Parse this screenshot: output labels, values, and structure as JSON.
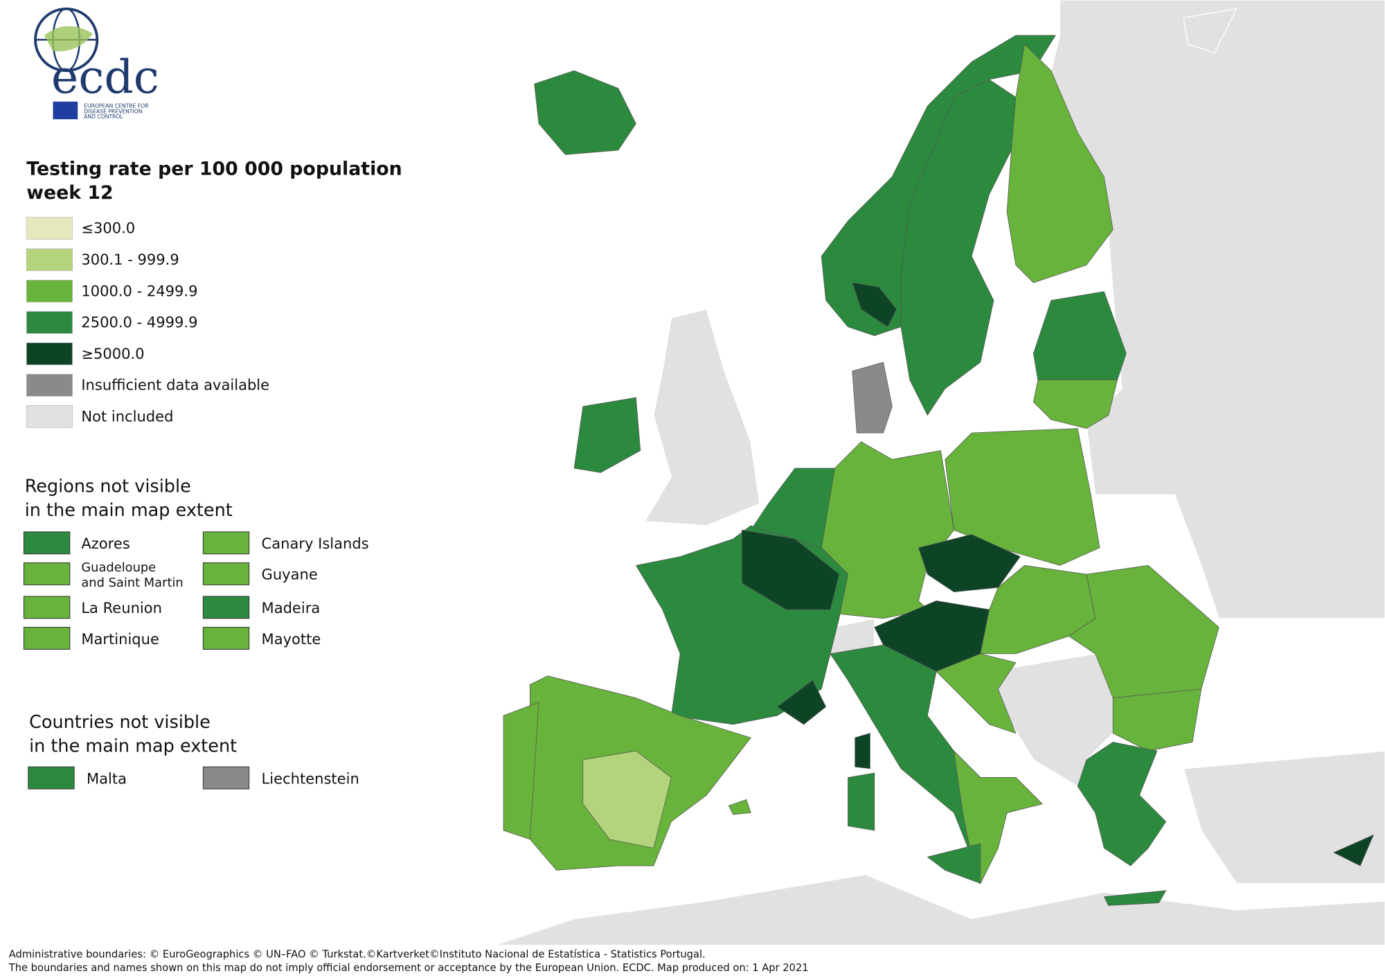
{
  "logo": {
    "name": "ecdc",
    "subtitle": [
      "EUROPEAN CENTRE FOR",
      "DISEASE PREVENTION",
      "AND CONTROL"
    ]
  },
  "legend": {
    "title": [
      "Testing rate per 100 000 population",
      "week 12"
    ],
    "items": [
      {
        "label": "≤300.0",
        "color": "#e6e8bb"
      },
      {
        "label": "300.1 - 999.9",
        "color": "#b3d47a"
      },
      {
        "label": "1000.0 - 2499.9",
        "color": "#68b33b"
      },
      {
        "label": "2500.0 - 4999.9",
        "color": "#2c8a3f"
      },
      {
        "label": "≥5000.0",
        "color": "#0e4426"
      },
      {
        "label": "Insufficient data available",
        "color": "#8a8a8a"
      },
      {
        "label": "Not included",
        "color": "#e1e1e1"
      }
    ]
  },
  "regions": {
    "title": [
      "Regions not visible",
      "in the main map extent"
    ],
    "items": [
      {
        "label": [
          "Azores"
        ],
        "color": "#2c8a3f"
      },
      {
        "label": [
          "Guadeloupe",
          "and Saint Martin"
        ],
        "color": "#68b33b"
      },
      {
        "label": [
          "La Reunion"
        ],
        "color": "#68b33b"
      },
      {
        "label": [
          "Martinique"
        ],
        "color": "#68b33b"
      },
      {
        "label": [
          "Canary Islands"
        ],
        "color": "#68b33b"
      },
      {
        "label": [
          "Guyane"
        ],
        "color": "#68b33b"
      },
      {
        "label": [
          "Madeira"
        ],
        "color": "#2c8a3f"
      },
      {
        "label": [
          "Mayotte"
        ],
        "color": "#68b33b"
      }
    ]
  },
  "countries": {
    "title": [
      "Countries not visible",
      "in the main map extent"
    ],
    "items": [
      {
        "label": [
          "Malta"
        ],
        "color": "#2c8a3f"
      },
      {
        "label": [
          "Liechtenstein"
        ],
        "color": "#8a8a8a"
      }
    ]
  },
  "footer": [
    "Administrative boundaries: © EuroGeographics © UN–FAO © Turkstat.©Kartverket©Instituto Nacional de Estatística - Statistics Portugal.",
    "The boundaries and names shown on this map do not imply official endorsement or acceptance by the European Union. ECDC. Map produced on: 1 Apr 2021"
  ]
}
